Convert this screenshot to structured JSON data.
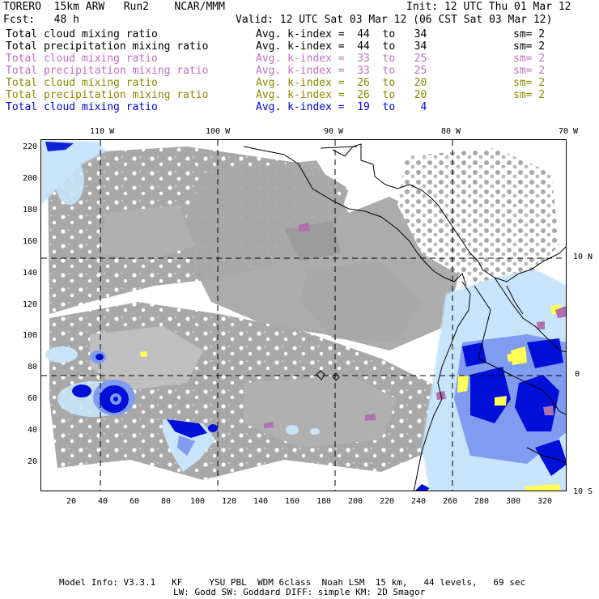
{
  "header": {
    "model": "TORERO  15km ARW   Run2    NCAR/MMM",
    "init": "Init: 12 UTC Thu 01 Mar 12",
    "fcst": "Fcst:   48 h",
    "valid": "Valid: 12 UTC Sat 03 Mar 12 (06 CST Sat 03 Mar 12)"
  },
  "legend_rows": [
    {
      "field": "Total cloud mixing ratio",
      "index": "Avg. k-index =  44  to   34",
      "sm": "sm= 2",
      "color": "#000000"
    },
    {
      "field": "Total precipitation mixing ratio",
      "index": "Avg. k-index =  44  to   34",
      "sm": "sm= 2",
      "color": "#000000"
    },
    {
      "field": "Total cloud mixing ratio",
      "index": "Avg. k-index =  33  to   25",
      "sm": "sm= 2",
      "color": "#c070c0"
    },
    {
      "field": "Total precipitation mixing ratio",
      "index": "Avg. k-index =  33  to   25",
      "sm": "sm= 2",
      "color": "#c070c0"
    },
    {
      "field": "Total cloud mixing ratio",
      "index": "Avg. k-index =  26  to   20",
      "sm": "sm= 2",
      "color": "#8a8a00"
    },
    {
      "field": "Total precipitation mixing ratio",
      "index": "Avg. k-index =  26  to   20",
      "sm": "sm= 2",
      "color": "#8a8a00"
    },
    {
      "field": "Total cloud mixing ratio",
      "index": "Avg. k-index =  19  to    4",
      "sm": "",
      "color": "#0000dd"
    }
  ],
  "axes": {
    "lon_labels": [
      "110 W",
      "100 W",
      "90 W",
      "80 W",
      "70 W"
    ],
    "lat_labels": [
      "10 N",
      "0",
      "10 S"
    ],
    "x_ticks": [
      "20",
      "40",
      "60",
      "80",
      "100",
      "120",
      "140",
      "160",
      "180",
      "200",
      "220",
      "240",
      "260",
      "280",
      "300",
      "320"
    ],
    "y_ticks": [
      "220",
      "200",
      "180",
      "160",
      "140",
      "120",
      "100",
      "80",
      "60",
      "40",
      "20"
    ]
  },
  "footer": {
    "line1": "Model Info: V3.3.1   KF     YSU PBL  WDM 6class  Noah LSM  15 km,   44 levels,   69 sec",
    "line2": "LW: Godd SW: Goddard DIFF: simple KM: 2D Smagor"
  },
  "colors": {
    "cloud_gray": "#a8a8a8",
    "light_cloud_gray": "#c8c8c8",
    "precip_light_blue": "#c8e4fa",
    "precip_mid_blue": "#7f9cf0",
    "precip_dark_blue": "#0010d8",
    "precip_yellow": "#ffff55",
    "precip_purple": "#b070b0",
    "coastline": "#000000",
    "gridline": "#000000"
  }
}
